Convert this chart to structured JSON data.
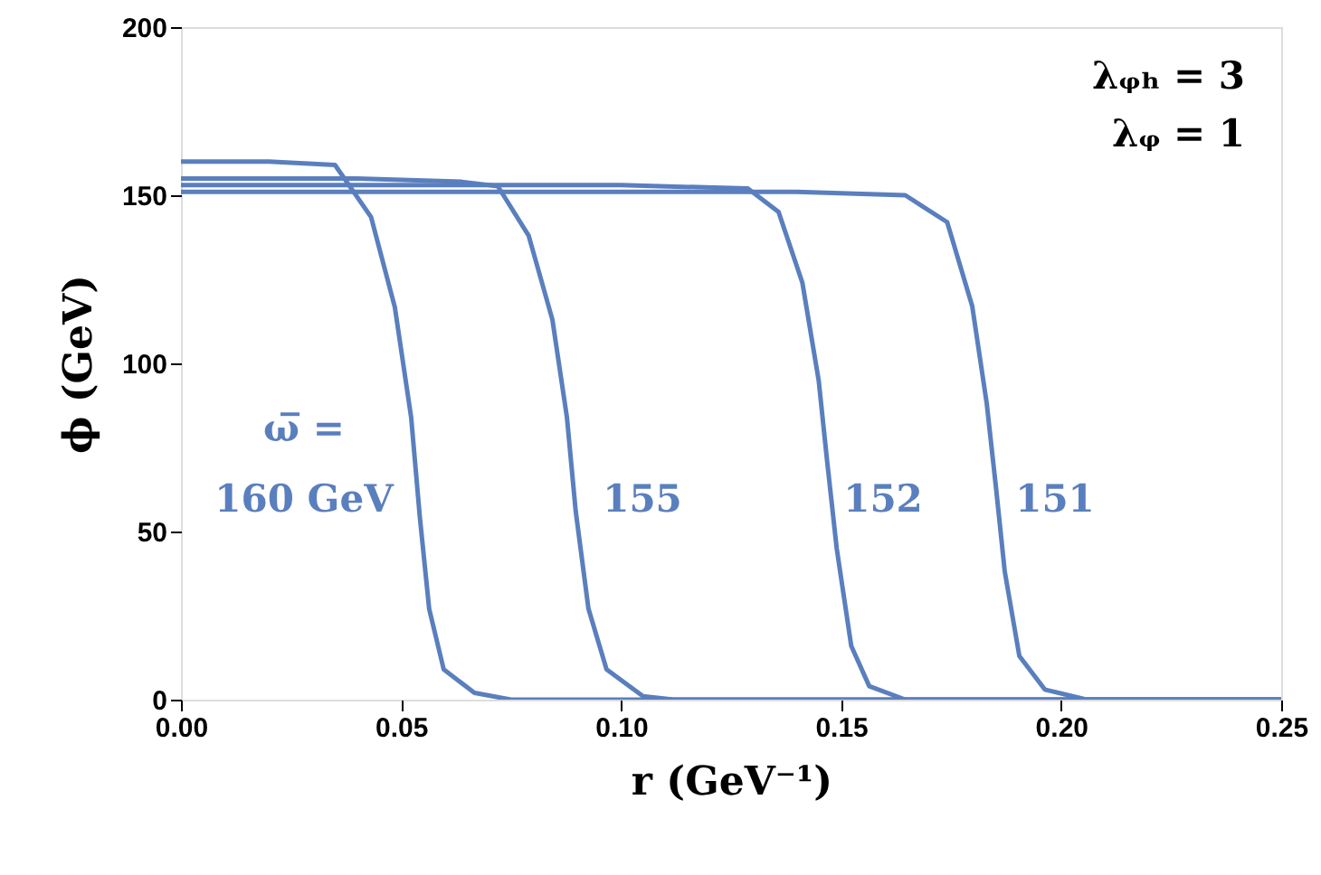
{
  "chart_data": {
    "type": "line",
    "xlabel": "r (GeV⁻¹)",
    "ylabel": "ϕ (GeV)",
    "xlim": [
      0,
      0.25
    ],
    "ylim": [
      0,
      200
    ],
    "xticks": [
      {
        "value": 0,
        "label": "0.00"
      },
      {
        "value": 0.05,
        "label": "0.05"
      },
      {
        "value": 0.1,
        "label": "0.10"
      },
      {
        "value": 0.15,
        "label": "0.15"
      },
      {
        "value": 0.2,
        "label": "0.20"
      },
      {
        "value": 0.25,
        "label": "0.25"
      }
    ],
    "yticks": [
      0,
      50,
      100,
      150,
      200
    ],
    "grid": false,
    "marker": "none",
    "line_style": "solid",
    "series": [
      {
        "color": "#5a7fbe",
        "x": [
          0,
          0.02,
          0.035,
          0.0432,
          0.0486,
          0.0523,
          0.0543,
          0.0564,
          0.0597,
          0.0667,
          0.075,
          0.25
        ],
        "values": [
          160,
          160,
          159,
          143.5,
          116.7,
          84,
          54,
          27,
          9,
          2,
          0,
          0
        ]
      },
      {
        "color": "#5a7fbe",
        "x": [
          0,
          0.04,
          0.0638,
          0.072,
          0.079,
          0.0844,
          0.0877,
          0.0897,
          0.0926,
          0.0967,
          0.105,
          0.112,
          0.25
        ],
        "values": [
          155,
          155,
          154,
          152.7,
          138,
          113,
          84,
          56,
          27,
          9,
          1,
          0,
          0
        ]
      },
      {
        "color": "#5a7fbe",
        "x": [
          0,
          0.1,
          0.1288,
          0.1358,
          0.1412,
          0.1449,
          0.1469,
          0.149,
          0.1523,
          0.1564,
          0.1646,
          0.25
        ],
        "values": [
          153,
          153,
          152,
          145,
          124,
          95,
          70,
          45,
          16,
          4,
          0,
          0
        ]
      },
      {
        "color": "#5a7fbe",
        "x": [
          0,
          0.14,
          0.1646,
          0.1741,
          0.1798,
          0.1831,
          0.1852,
          0.1872,
          0.1905,
          0.1963,
          0.2058,
          0.25
        ],
        "values": [
          151,
          151,
          150,
          142,
          117,
          88,
          63,
          38,
          13,
          3,
          0,
          0
        ]
      }
    ],
    "annotations": [
      "ω̅ =",
      "160 GeV",
      "155",
      "152",
      "151",
      "λᵩₕ = 3",
      "λᵩ = 1"
    ]
  }
}
